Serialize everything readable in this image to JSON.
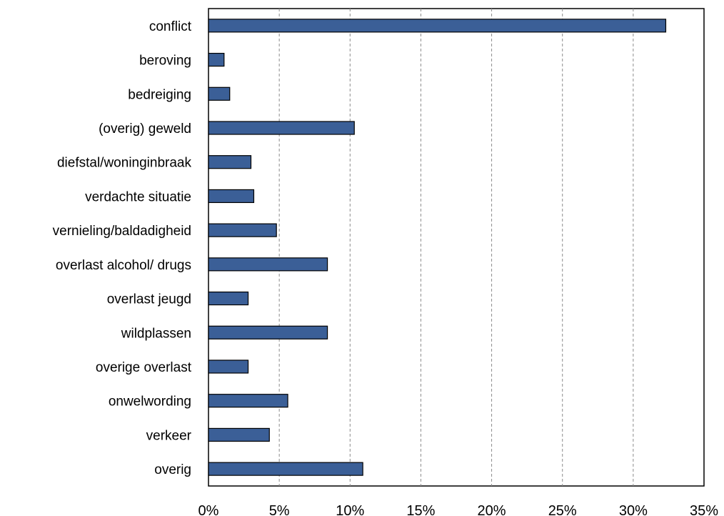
{
  "chart_data": {
    "type": "bar",
    "orientation": "horizontal",
    "categories": [
      "conflict",
      "beroving",
      "bedreiging",
      "(overig) geweld",
      "diefstal/woninginbraak",
      "verdachte situatie",
      "vernieling/baldadigheid",
      "overlast alcohol/ drugs",
      "overlast jeugd",
      "wildplassen",
      "overige overlast",
      "onwelwording",
      "verkeer",
      "overig"
    ],
    "values": [
      32.3,
      1.1,
      1.5,
      10.3,
      3.0,
      3.2,
      4.8,
      8.4,
      2.8,
      8.4,
      2.8,
      5.6,
      4.3,
      10.9
    ],
    "xlim": [
      0,
      35
    ],
    "xticks": [
      0,
      5,
      10,
      15,
      20,
      25,
      30,
      35
    ],
    "xtick_labels": [
      "0%",
      "5%",
      "10%",
      "15%",
      "20%",
      "25%",
      "30%",
      "35%"
    ],
    "title": "",
    "xlabel": "",
    "ylabel": "",
    "grid": "vertical-dashed",
    "legend": "none",
    "colors": {
      "bar_fill": "#3b5f97",
      "bar_stroke": "#000000",
      "grid": "#8c8c8c",
      "axis": "#000000"
    }
  }
}
